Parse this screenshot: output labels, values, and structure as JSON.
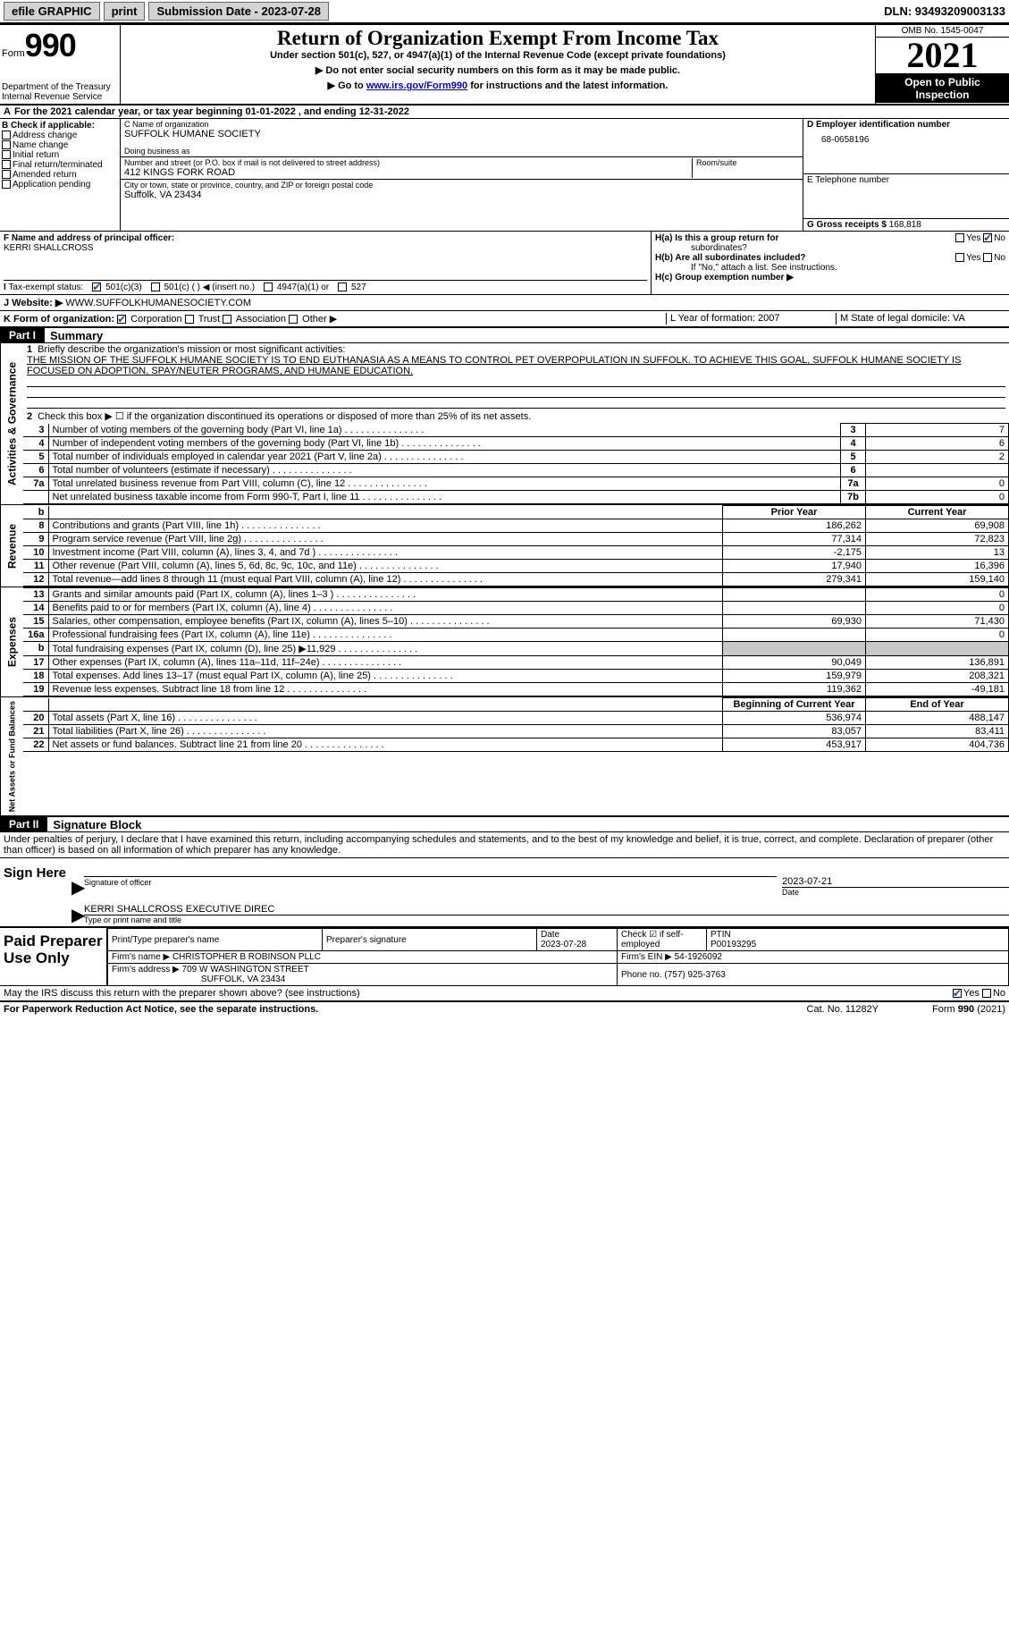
{
  "colors": {
    "black": "#000000",
    "white": "#ffffff",
    "gray_btn": "#d3d3d3",
    "shade": "#c8c8c8",
    "link": "#0000cc",
    "check_blue": "#1a4d8f"
  },
  "topbar": {
    "efile": "efile GRAPHIC",
    "print": "print",
    "subdate": "Submission Date - 2023-07-28",
    "dln": "DLN: 93493209003133"
  },
  "header": {
    "form_word": "Form",
    "form_num": "990",
    "dept": "Department of the Treasury",
    "irs": "Internal Revenue Service",
    "title": "Return of Organization Exempt From Income Tax",
    "sub1": "Under section 501(c), 527, or 4947(a)(1) of the Internal Revenue Code (except private foundations)",
    "sub2": "▶ Do not enter social security numbers on this form as it may be made public.",
    "sub3_pre": "▶ Go to ",
    "sub3_link": "www.irs.gov/Form990",
    "sub3_post": " for instructions and the latest information.",
    "omb": "OMB No. 1545-0047",
    "year": "2021",
    "inspect1": "Open to Public",
    "inspect2": "Inspection"
  },
  "line_a": "For the 2021 calendar year, or tax year beginning 01-01-2022   , and ending 12-31-2022",
  "col_b": {
    "head": "B Check if applicable:",
    "items": [
      "Address change",
      "Name change",
      "Initial return",
      "Final return/terminated",
      "Amended return",
      "Application pending"
    ]
  },
  "col_c": {
    "name_label": "C Name of organization",
    "name": "SUFFOLK HUMANE SOCIETY",
    "dba_label": "Doing business as",
    "dba": "",
    "addr_label": "Number and street (or P.O. box if mail is not delivered to street address)",
    "room_label": "Room/suite",
    "addr": "412 KINGS FORK ROAD",
    "city_label": "City or town, state or province, country, and ZIP or foreign postal code",
    "city": "Suffolk, VA  23434"
  },
  "col_d": {
    "ein_label": "D Employer identification number",
    "ein": "68-0658196",
    "tel_label": "E Telephone number",
    "tel": "",
    "gross_label": "G Gross receipts $",
    "gross": "168,818"
  },
  "section_f": {
    "label": "F  Name and address of principal officer:",
    "name": "KERRI SHALLCROSS"
  },
  "section_h": {
    "a": "H(a)  Is this a group return for",
    "a2": "subordinates?",
    "b": "H(b)  Are all subordinates included?",
    "b_note": "If \"No,\" attach a list. See instructions.",
    "c": "H(c)  Group exemption number ▶",
    "yes": "Yes",
    "no": "No"
  },
  "status": {
    "label": "Tax-exempt status:",
    "opt1": "501(c)(3)",
    "opt2": "501(c) (  ) ◀ (insert no.)",
    "opt3": "4947(a)(1) or",
    "opt4": "527"
  },
  "website": {
    "label": "Website: ▶",
    "val": "WWW.SUFFOLKHUMANESOCIETY.COM"
  },
  "korg": {
    "k": "K Form of organization:",
    "corp": "Corporation",
    "trust": "Trust",
    "assoc": "Association",
    "other": "Other ▶",
    "l": "L Year of formation: 2007",
    "m": "M State of legal domicile: VA"
  },
  "part1_label": "Part I",
  "part1_title": "Summary",
  "summary": {
    "activities_label": "Activities & Governance",
    "revenue_label": "Revenue",
    "expenses_label": "Expenses",
    "netassets_label": "Net Assets or Fund Balances",
    "line1_label": "Briefly describe the organization's mission or most significant activities:",
    "line1_text": "THE MISSION OF THE SUFFOLK HUMANE SOCIETY IS TO END EUTHANASIA AS A MEANS TO CONTROL PET OVERPOPULATION IN SUFFOLK. TO ACHIEVE THIS GOAL, SUFFOLK HUMANE SOCIETY IS FOCUSED ON ADOPTION, SPAY/NEUTER PROGRAMS, AND HUMANE EDUCATION.",
    "line2": "Check this box ▶ ☐  if the organization discontinued its operations or disposed of more than 25% of its net assets.",
    "rows_ag": [
      {
        "n": "3",
        "text": "Number of voting members of the governing body (Part VI, line 1a)",
        "box": "3",
        "val": "7"
      },
      {
        "n": "4",
        "text": "Number of independent voting members of the governing body (Part VI, line 1b)",
        "box": "4",
        "val": "6"
      },
      {
        "n": "5",
        "text": "Total number of individuals employed in calendar year 2021 (Part V, line 2a)",
        "box": "5",
        "val": "2"
      },
      {
        "n": "6",
        "text": "Total number of volunteers (estimate if necessary)",
        "box": "6",
        "val": ""
      },
      {
        "n": "7a",
        "text": "Total unrelated business revenue from Part VIII, column (C), line 12",
        "box": "7a",
        "val": "0"
      },
      {
        "n": "",
        "text": "Net unrelated business taxable income from Form 990-T, Part I, line 11",
        "box": "7b",
        "val": "0"
      }
    ],
    "header_b": "b",
    "header_prior": "Prior Year",
    "header_current": "Current Year",
    "rows_rev": [
      {
        "n": "8",
        "text": "Contributions and grants (Part VIII, line 1h)",
        "prior": "186,262",
        "cur": "69,908"
      },
      {
        "n": "9",
        "text": "Program service revenue (Part VIII, line 2g)",
        "prior": "77,314",
        "cur": "72,823"
      },
      {
        "n": "10",
        "text": "Investment income (Part VIII, column (A), lines 3, 4, and 7d )",
        "prior": "-2,175",
        "cur": "13"
      },
      {
        "n": "11",
        "text": "Other revenue (Part VIII, column (A), lines 5, 6d, 8c, 9c, 10c, and 11e)",
        "prior": "17,940",
        "cur": "16,396"
      },
      {
        "n": "12",
        "text": "Total revenue—add lines 8 through 11 (must equal Part VIII, column (A), line 12)",
        "prior": "279,341",
        "cur": "159,140"
      }
    ],
    "rows_exp": [
      {
        "n": "13",
        "text": "Grants and similar amounts paid (Part IX, column (A), lines 1–3 )",
        "prior": "",
        "cur": "0"
      },
      {
        "n": "14",
        "text": "Benefits paid to or for members (Part IX, column (A), line 4)",
        "prior": "",
        "cur": "0"
      },
      {
        "n": "15",
        "text": "Salaries, other compensation, employee benefits (Part IX, column (A), lines 5–10)",
        "prior": "69,930",
        "cur": "71,430"
      },
      {
        "n": "16a",
        "text": "Professional fundraising fees (Part IX, column (A), line 11e)",
        "prior": "",
        "cur": "0"
      },
      {
        "n": "b",
        "text": "Total fundraising expenses (Part IX, column (D), line 25) ▶11,929",
        "prior": "shade",
        "cur": "shade"
      },
      {
        "n": "17",
        "text": "Other expenses (Part IX, column (A), lines 11a–11d, 11f–24e)",
        "prior": "90,049",
        "cur": "136,891"
      },
      {
        "n": "18",
        "text": "Total expenses. Add lines 13–17 (must equal Part IX, column (A), line 25)",
        "prior": "159,979",
        "cur": "208,321"
      },
      {
        "n": "19",
        "text": "Revenue less expenses. Subtract line 18 from line 12",
        "prior": "119,362",
        "cur": "-49,181"
      }
    ],
    "header_begin": "Beginning of Current Year",
    "header_end": "End of Year",
    "rows_net": [
      {
        "n": "20",
        "text": "Total assets (Part X, line 16)",
        "prior": "536,974",
        "cur": "488,147"
      },
      {
        "n": "21",
        "text": "Total liabilities (Part X, line 26)",
        "prior": "83,057",
        "cur": "83,411"
      },
      {
        "n": "22",
        "text": "Net assets or fund balances. Subtract line 21 from line 20",
        "prior": "453,917",
        "cur": "404,736"
      }
    ]
  },
  "part2_label": "Part II",
  "part2_title": "Signature Block",
  "penalty": "Under penalties of perjury, I declare that I have examined this return, including accompanying schedules and statements, and to the best of my knowledge and belief, it is true, correct, and complete. Declaration of preparer (other than officer) is based on all information of which preparer has any knowledge.",
  "sign": {
    "label": "Sign Here",
    "sig_of": "Signature of officer",
    "date_val": "2023-07-21",
    "date_label": "Date",
    "name": "KERRI SHALLCROSS  EXECUTIVE DIREC",
    "name_label": "Type or print name and title"
  },
  "paid": {
    "label": "Paid Preparer Use Only",
    "h1": "Print/Type preparer's name",
    "h2": "Preparer's signature",
    "h3": "Date",
    "h3v": "2023-07-28",
    "h4": "Check ☑ if self-employed",
    "h5": "PTIN",
    "h5v": "P00193295",
    "firm_label": "Firm's name    ▶",
    "firm": "CHRISTOPHER B ROBINSON PLLC",
    "firm_ein_label": "Firm's EIN ▶",
    "firm_ein": "54-1926092",
    "addr_label": "Firm's address ▶",
    "addr1": "709 W WASHINGTON STREET",
    "addr2": "SUFFOLK, VA  23434",
    "phone_label": "Phone no.",
    "phone": "(757) 925-3763"
  },
  "may": "May the IRS discuss this return with the preparer shown above? (see instructions)",
  "footer": {
    "left": "For Paperwork Reduction Act Notice, see the separate instructions.",
    "mid": "Cat. No. 11282Y",
    "right": "Form 990 (2021)"
  },
  "labels": {
    "yes": "Yes",
    "no": "No",
    "i_label": "I",
    "j_label": "J",
    "a_label": "A",
    "one": "1",
    "two": "2",
    "b": "b"
  }
}
